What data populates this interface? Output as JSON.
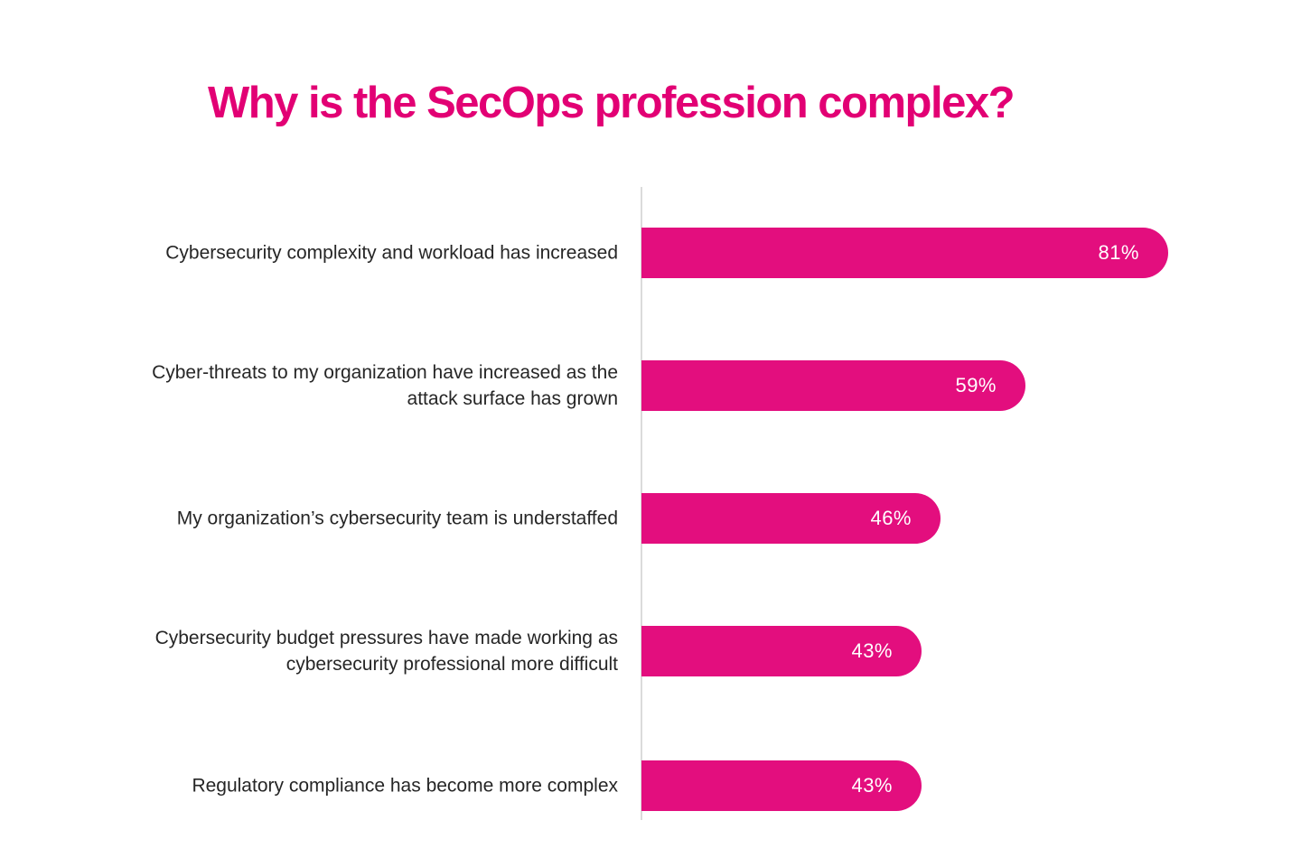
{
  "title": {
    "text": "Why is the SecOps profession complex?",
    "color": "#E20074"
  },
  "chart_data": {
    "type": "bar",
    "orientation": "horizontal",
    "title": "Why is the SecOps profession complex?",
    "categories": [
      "Cybersecurity complexity and workload has increased",
      "Cyber-threats to my organization have increased as the attack surface has grown",
      "My organization’s cybersecurity team is understaffed",
      "Cybersecurity budget pressures have made working as cybersecurity professional more difficult",
      "Regulatory compliance has become more complex"
    ],
    "values": [
      81,
      59,
      46,
      43,
      43
    ],
    "value_labels": [
      "81%",
      "59%",
      "46%",
      "43%",
      "43%"
    ],
    "xlabel": "",
    "ylabel": "",
    "xlim": [
      0,
      100
    ],
    "grid": false,
    "legend": false,
    "bar_color": "#E30E7E",
    "title_color": "#E20074",
    "category_label_color": "#262626",
    "axis_line_color": "#DBDBDB",
    "value_label_color": "#FFFFFF"
  },
  "rows": [
    {
      "label": "Cybersecurity complexity and workload has increased",
      "pct": "81%"
    },
    {
      "label": "Cyber-threats to my organization have increased as the\nattack surface has grown",
      "pct": "59%"
    },
    {
      "label": "My organization’s cybersecurity team is understaffed",
      "pct": "46%"
    },
    {
      "label": "Cybersecurity budget pressures have made working as\ncybersecurity professional more difficult",
      "pct": "43%"
    },
    {
      "label": "Regulatory compliance has become more complex",
      "pct": "43%"
    }
  ]
}
